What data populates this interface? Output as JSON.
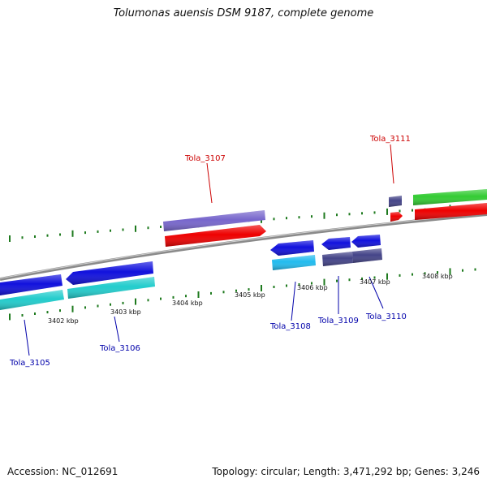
{
  "title": "Tolumonas auensis DSM 9187, complete genome",
  "footer": {
    "accession": "Accession: NC_012691",
    "topology": "Topology: circular; Length: 3,471,292 bp; Genes: 3,246"
  },
  "kbp_labels": [
    "3402 kbp",
    "3403 kbp",
    "3404 kbp",
    "3405 kbp",
    "3406 kbp",
    "3407 kbp",
    "3408 kbp"
  ],
  "gene_labels": {
    "top": [
      "Tola_3107",
      "Tola_3111"
    ],
    "bottom": [
      "Tola_3105",
      "Tola_3106",
      "Tola_3108",
      "Tola_3109",
      "Tola_3110"
    ]
  },
  "colors": {
    "backbone": "#8a8a8a",
    "tick": "#1e7a1e",
    "red": "#ee0000",
    "green": "#33cc33",
    "blue": "#1111dd",
    "cyan": "#22cccc",
    "lightcyan": "#22bbee",
    "purple": "#7766cc",
    "navy": "#444488",
    "top_label": "#cc0000",
    "bottom_label": "#0000aa"
  }
}
